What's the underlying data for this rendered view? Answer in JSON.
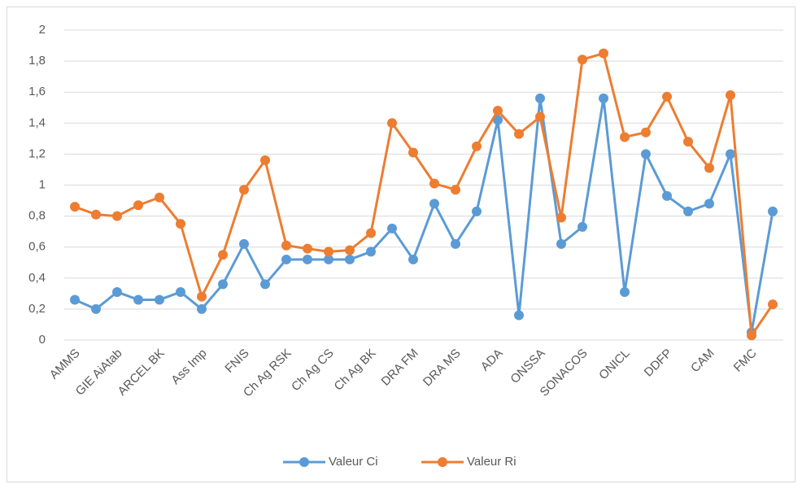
{
  "chart_data": {
    "type": "line",
    "categories": [
      "AMMS",
      null,
      "GIE AiAtab",
      null,
      "ARCEL BK",
      null,
      "Ass Imp",
      null,
      "FNIS",
      null,
      "Ch Ag RSK",
      null,
      "Ch Ag CS",
      null,
      "Ch Ag BK",
      null,
      "DRA FM",
      null,
      "DRA MS",
      null,
      "ADA",
      null,
      "ONSSA",
      null,
      "SONACOS",
      null,
      "ONICL",
      null,
      "DDFP",
      null,
      "CAM",
      null,
      "FMC",
      null
    ],
    "series": [
      {
        "name": "Valeur Ci",
        "color": "#5b9bd5",
        "values": [
          0.26,
          0.2,
          0.31,
          0.26,
          0.26,
          0.31,
          0.2,
          0.36,
          0.62,
          0.36,
          0.52,
          0.52,
          0.52,
          0.52,
          0.57,
          0.72,
          0.52,
          0.88,
          0.62,
          0.83,
          1.42,
          0.16,
          1.56,
          0.62,
          0.73,
          1.56,
          0.31,
          1.2,
          0.93,
          0.83,
          0.88,
          1.2,
          0.05,
          0.83
        ]
      },
      {
        "name": "Valeur Ri",
        "color": "#ed7d31",
        "values": [
          0.86,
          0.81,
          0.8,
          0.87,
          0.92,
          0.75,
          0.28,
          0.55,
          0.97,
          1.16,
          0.61,
          0.59,
          0.57,
          0.58,
          0.69,
          1.4,
          1.21,
          1.01,
          0.97,
          1.25,
          1.48,
          1.33,
          1.44,
          0.79,
          1.81,
          1.85,
          1.31,
          1.34,
          1.57,
          1.28,
          1.11,
          1.58,
          0.03,
          0.23
        ]
      }
    ],
    "ylim": [
      0,
      2
    ],
    "yticks": [
      0,
      {
        "value": 0.2,
        "label": "0,2"
      },
      {
        "value": 0.4,
        "label": "0,4"
      },
      {
        "value": 0.6,
        "label": "0,6"
      },
      {
        "value": 0.8,
        "label": "0,8"
      },
      1,
      {
        "value": 1.2,
        "label": "1,2"
      },
      {
        "value": 1.4,
        "label": "1,4"
      },
      {
        "value": 1.6,
        "label": "1,6"
      },
      {
        "value": 1.8,
        "label": "1,8"
      },
      2
    ],
    "grid": true,
    "legend": "bottom"
  }
}
